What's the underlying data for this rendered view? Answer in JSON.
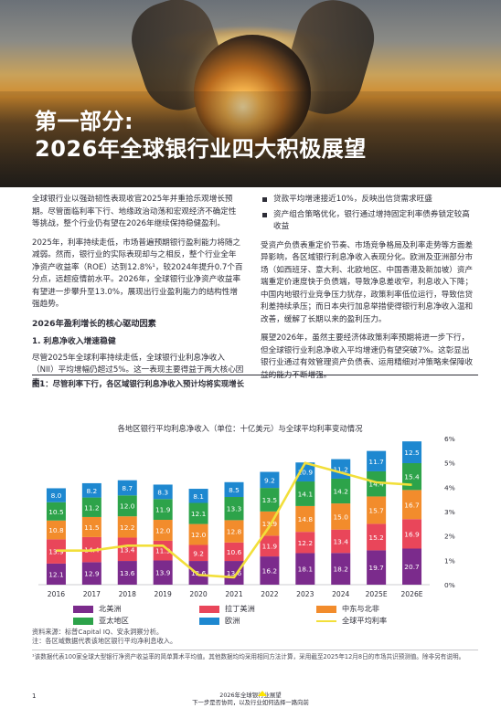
{
  "hero": {
    "title_line1": "第一部分:",
    "title_line2": "2026年全球银行业四大积极展望"
  },
  "left_column": {
    "p1": "全球银行业以强劲韧性表现收官2025年并重拾乐观增长预期。尽管面临利率下行、地缘政治动荡和宏观经济不确定性等挑战，整个行业仍有望在2026年继续保持稳健盈利。",
    "p2": "2025年，利率持续走低，市场普遍预期银行盈利能力将随之减弱。然而，银行业的实际表现却与之相反，整个行业全年净资产收益率（ROE）达到12.8%¹，较2024年提升0.7个百分点，远超疫情前水平。2026年，全球银行业净资产收益率有望进一步攀升至13.0%，展现出行业盈利能力的结构性增强趋势。",
    "heading": "2026年盈利增长的核心驱动因素",
    "subheading": "1. 利息净收入增速稳健",
    "p3": "尽管2025年全球利率持续走低，全球银行业利息净收入（NII）平均增幅仍超过5%。这一表现主要得益于两大核心因素:"
  },
  "right_column": {
    "bullets": [
      "贷款平均增速接近10%，反映出信贷需求旺盛",
      "资产组合策略优化，银行通过增持固定利率债券锁定较高收益"
    ],
    "p1": "受资产负债表重定价节奏、市场竞争格局及利率走势等方面差异影响，各区域银行利息净收入表现分化。欧洲及亚洲部分市场（如西班牙、意大利、北欧地区、中国香港及新加坡）资产端重定价速度快于负债端，导致净息差收窄，利息收入下降；中国内地银行业竞争压力犹存，政策利率低位运行，导致信贷利差持续承压；而日本央行加息举措使得银行利息净收入温和改善，缓解了长期以来的盈利压力。",
    "p2": "展望2026年，虽然主要经济体政策利率预期将进一步下行，但全球银行业利息净收入平均增速仍有望突破7%。这彰显出银行业通过有效管理资产负债表、运用精细对冲策略来保障收益的能力不断增强。"
  },
  "figure": {
    "caption": "图1：尽管利率下行，各区域银行利息净收入预计均将实现增长",
    "source_line1": "资料来源：标普Capital IQ、安永洞察分析。",
    "source_line2": "注：各区域数据代表该地区银行平均净利息收入。"
  },
  "chart_data": {
    "type": "bar",
    "stacked": true,
    "title": "各地区银行平均利息净收入（单位：十亿美元）与全球平均利率变动情况",
    "categories": [
      "2016",
      "2017",
      "2018",
      "2019",
      "2020",
      "2021",
      "2022",
      "2023",
      "2024",
      "2025E",
      "2026E"
    ],
    "series": [
      {
        "name": "北美洲",
        "color": "#7b2b8c",
        "values": [
          12.1,
          12.9,
          13.6,
          13.9,
          13.6,
          13.6,
          16.2,
          18.1,
          18.2,
          19.7,
          20.7
        ]
      },
      {
        "name": "拉丁美洲",
        "color": "#e9465a",
        "values": [
          13.9,
          14.4,
          13.4,
          11.3,
          9.2,
          10.6,
          11.9,
          12.2,
          13.4,
          15.2,
          16.9
        ]
      },
      {
        "name": "中东与北非",
        "color": "#f28c2c",
        "values": [
          10.8,
          11.5,
          12.2,
          12.0,
          12.0,
          12.8,
          13.9,
          14.8,
          15.0,
          15.7,
          16.7
        ]
      },
      {
        "name": "亚太地区",
        "color": "#2da34a",
        "values": [
          10.5,
          11.2,
          12.0,
          11.9,
          12.1,
          13.3,
          13.5,
          14.1,
          14.2,
          14.4,
          15.4
        ]
      },
      {
        "name": "欧洲",
        "color": "#1e88d0",
        "values": [
          8.0,
          8.2,
          8.7,
          8.3,
          8.1,
          8.5,
          9.2,
          10.9,
          11.2,
          11.7,
          12.5
        ]
      }
    ],
    "line_series": {
      "name": "全球平均利率",
      "color": "#f2df3a",
      "values": [
        1.4,
        1.4,
        1.6,
        1.6,
        0.4,
        0.3,
        2.4,
        5.0,
        4.6,
        4.2,
        4.1
      ]
    },
    "y2_ticks": [
      "0%",
      "1%",
      "2%",
      "3%",
      "4%",
      "5%",
      "6%"
    ],
    "y2lim": [
      0,
      6
    ]
  },
  "footnote": "¹该数据代表100家全球大型银行净资产收益率的简单算术平均值。其他数据均均采用相同方法计算，采用截至2025年12月8日的市场共识预测值。除非另有说明。",
  "footer": {
    "page_number": "1",
    "line1": "2026年全球银行业展望",
    "line2": "下一步是否协同，以及行业如何选择一路向前"
  }
}
